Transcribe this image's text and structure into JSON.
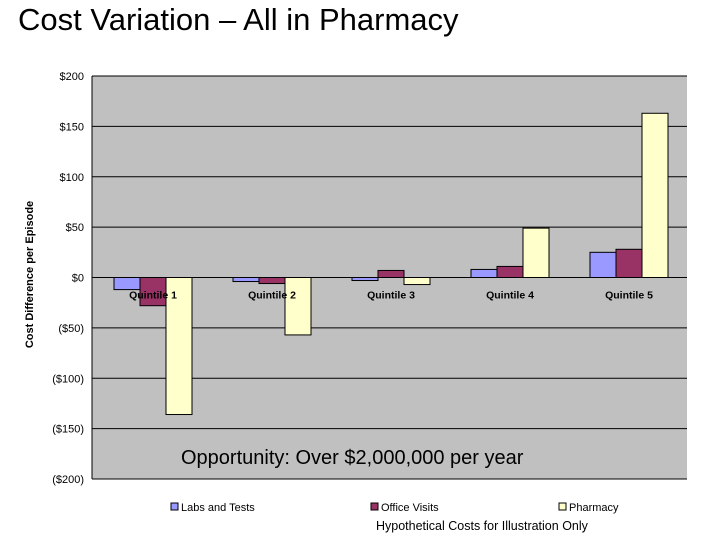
{
  "slide": {
    "title": "Cost Variation – All in Pharmacy",
    "footnote": "Hypothetical Costs for Illustration Only"
  },
  "chart_data": {
    "type": "bar",
    "title": "",
    "xlabel": "",
    "ylabel": "Cost Difference per Episode",
    "ylim": [
      -200,
      200
    ],
    "y_ticks": [
      200,
      150,
      100,
      50,
      0,
      -50,
      -100,
      -150,
      -200
    ],
    "y_tick_labels": [
      "$200",
      "$150",
      "$100",
      "$50",
      "$0",
      "($50)",
      "($100)",
      "($150)",
      "($200)"
    ],
    "categories": [
      "Quintile 1",
      "Quintile 2",
      "Quintile 3",
      "Quintile 4",
      "Quintile 5"
    ],
    "series": [
      {
        "name": "Labs and Tests",
        "color": "#9999ff",
        "values": [
          -12,
          -4,
          -3,
          8,
          25
        ]
      },
      {
        "name": "Office Visits",
        "color": "#993366",
        "values": [
          -28,
          -6,
          7,
          11,
          28
        ]
      },
      {
        "name": "Pharmacy",
        "color": "#ffffcc",
        "values": [
          -136,
          -57,
          -7,
          49,
          163
        ]
      }
    ],
    "annotation": "Opportunity:  Over $2,000,000 per year",
    "grid": true,
    "legend_position": "bottom",
    "plot_background": "#c0c0c0"
  }
}
